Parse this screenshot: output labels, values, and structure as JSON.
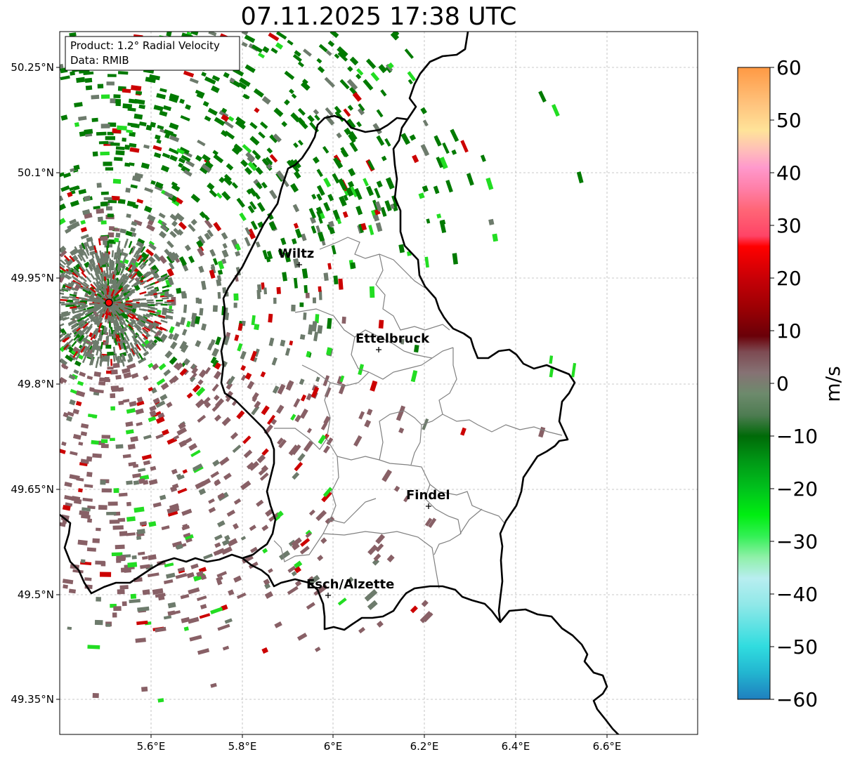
{
  "title": "07.11.2025 17:38 UTC",
  "info_box": {
    "product": "Product: 1.2° Radial Velocity",
    "data": "Data: RMIB"
  },
  "axes": {
    "lon_ticks": [
      "5.6°E",
      "5.8°E",
      "6°E",
      "6.2°E",
      "6.4°E",
      "6.6°E"
    ],
    "lat_ticks": [
      "50.25°N",
      "50.1°N",
      "49.95°N",
      "49.8°N",
      "49.65°N",
      "49.5°N",
      "49.35°N"
    ],
    "grid": true
  },
  "cities": [
    {
      "name": "Wiltz"
    },
    {
      "name": "Ettelbruck"
    },
    {
      "name": "Findel"
    },
    {
      "name": "Esch/Alzette"
    }
  ],
  "radar_site": {
    "color": "#ff0000"
  },
  "colorbar": {
    "label": "m/s",
    "ticks": [
      "60",
      "50",
      "40",
      "30",
      "20",
      "10",
      "0",
      "−10",
      "−20",
      "−30",
      "−40",
      "−50",
      "−60"
    ],
    "range": [
      -60,
      60
    ],
    "stops": [
      {
        "v": -60,
        "c": "#1f7fbf"
      },
      {
        "v": -55,
        "c": "#22b5d0"
      },
      {
        "v": -50,
        "c": "#30dcdf"
      },
      {
        "v": -42,
        "c": "#90e8e8"
      },
      {
        "v": -37,
        "c": "#b8eef0"
      },
      {
        "v": -33,
        "c": "#8ff0a8"
      },
      {
        "v": -29,
        "c": "#33f055"
      },
      {
        "v": -25,
        "c": "#00ee11"
      },
      {
        "v": -20,
        "c": "#00c21c"
      },
      {
        "v": -15,
        "c": "#009a16"
      },
      {
        "v": -10,
        "c": "#006a08"
      },
      {
        "v": -6,
        "c": "#4e7c52"
      },
      {
        "v": -2,
        "c": "#6d8a6c"
      },
      {
        "v": 2,
        "c": "#867274"
      },
      {
        "v": 6,
        "c": "#7d4a52"
      },
      {
        "v": 9,
        "c": "#6a0008"
      },
      {
        "v": 14,
        "c": "#990004"
      },
      {
        "v": 20,
        "c": "#c80006"
      },
      {
        "v": 26,
        "c": "#ff0000"
      },
      {
        "v": 28,
        "c": "#ff4466"
      },
      {
        "v": 33,
        "c": "#ff6677"
      },
      {
        "v": 37,
        "c": "#ff7fa8"
      },
      {
        "v": 41,
        "c": "#ff99cc"
      },
      {
        "v": 44,
        "c": "#ffbbbb"
      },
      {
        "v": 48,
        "c": "#ffe399"
      },
      {
        "v": 53,
        "c": "#ffc37d"
      },
      {
        "v": 60,
        "c": "#ff9944"
      }
    ]
  },
  "colors": {
    "gray_band": "#6d7b6c",
    "pink_band": "#886066",
    "dark_green": "#007a00",
    "bright_green": "#22dd22",
    "red": "#cc0000"
  }
}
